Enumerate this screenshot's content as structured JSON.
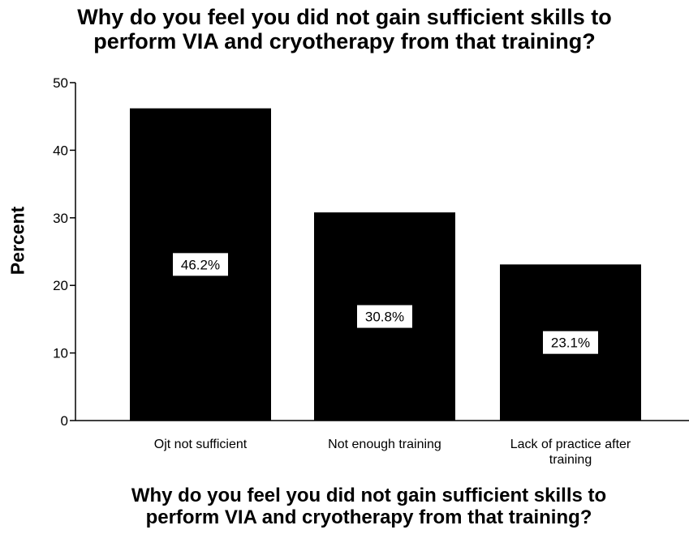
{
  "chart_data": {
    "type": "bar",
    "title": "Why do you feel you did not gain sufficient skills to perform VIA and cryotherapy from  that training?",
    "title_lines": [
      "Why do you feel you did not gain sufficient skills to",
      "perform VIA and cryotherapy from  that training?"
    ],
    "xlabel": "Why do you feel you did not gain sufficient skills to perform VIA and cryotherapy from  that training?",
    "xlabel_lines": [
      "Why do you feel you did not gain sufficient skills to",
      "perform VIA and cryotherapy from  that training?"
    ],
    "ylabel": "Percent",
    "categories": [
      [
        "Ojt not sufficient"
      ],
      [
        "Not enough training"
      ],
      [
        "Lack of practice after",
        "training"
      ]
    ],
    "values": [
      46.2,
      30.8,
      23.1
    ],
    "data_labels": [
      "46.2%",
      "30.8%",
      "23.1%"
    ],
    "ylim": [
      0,
      50
    ],
    "yticks": [
      0,
      10,
      20,
      30,
      40,
      50
    ],
    "grid": false,
    "legend": "none",
    "bar_color": "#000000",
    "label_box_color": "#ffffff"
  }
}
